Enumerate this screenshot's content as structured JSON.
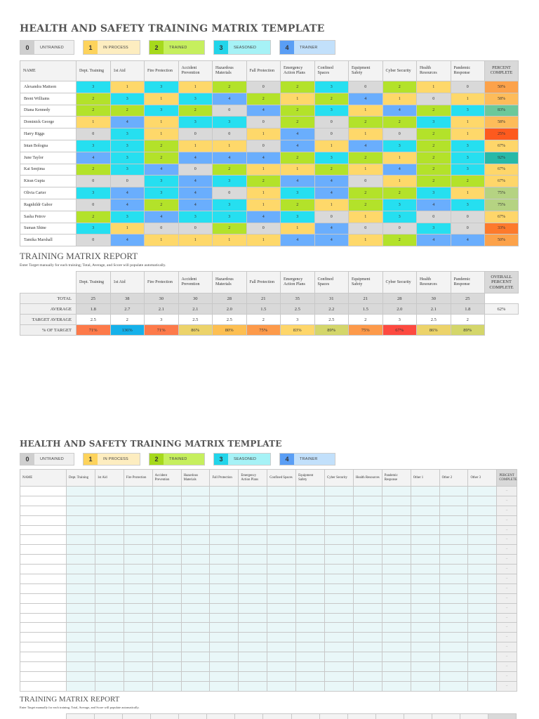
{
  "page1": {
    "title": "HEALTH AND SAFETY TRAINING MATRIX TEMPLATE",
    "legend": [
      {
        "value": "0",
        "label": "UNTRAINED",
        "color": "#cfcfcf"
      },
      {
        "value": "1",
        "label": "IN PROCESS",
        "color": "#fdd35c"
      },
      {
        "value": "2",
        "label": "TRAINED",
        "color": "#a6d91c"
      },
      {
        "value": "3",
        "label": "SEASONED",
        "color": "#22d5ea"
      },
      {
        "value": "4",
        "label": "TRAINER",
        "color": "#5a9ef5"
      }
    ],
    "matrix": {
      "headers": [
        "NAME",
        "Dept. Training",
        "1st Aid",
        "Fire Protection",
        "Accident Prevention",
        "Hazardous Materials",
        "Fall Protection",
        "Emergency Action Plans",
        "Confined Spaces",
        "Equipment Safety",
        "Cyber Security",
        "Health Resources",
        "Pandemic Response",
        "PERCENT COMPLETE"
      ],
      "rows": [
        {
          "name": "Alexandra Mattson",
          "scores": [
            3,
            1,
            3,
            1,
            2,
            0,
            2,
            3,
            0,
            2,
            1,
            0
          ],
          "percent": "50%",
          "pct_color": "#fca24a"
        },
        {
          "name": "Brent Williams",
          "scores": [
            2,
            3,
            1,
            3,
            4,
            2,
            1,
            2,
            4,
            1,
            0,
            1
          ],
          "percent": "58%",
          "pct_color": "#fdbc5a"
        },
        {
          "name": "Diana Kennedy",
          "scores": [
            2,
            2,
            3,
            2,
            0,
            4,
            2,
            3,
            1,
            4,
            2,
            3
          ],
          "percent": "83%",
          "pct_color": "#6cc89a"
        },
        {
          "name": "Dominick George",
          "scores": [
            1,
            4,
            1,
            3,
            3,
            0,
            2,
            0,
            2,
            2,
            3,
            1
          ],
          "percent": "58%",
          "pct_color": "#fdbc5a"
        },
        {
          "name": "Harry Riggs",
          "scores": [
            0,
            3,
            1,
            0,
            0,
            1,
            4,
            0,
            1,
            0,
            2,
            1
          ],
          "percent": "25%",
          "pct_color": "#fd5a1e"
        },
        {
          "name": "Intan Bologna",
          "scores": [
            3,
            3,
            2,
            1,
            1,
            0,
            4,
            1,
            4,
            3,
            2,
            3
          ],
          "percent": "67%",
          "pct_color": "#fed66a"
        },
        {
          "name": "June Taylor",
          "scores": [
            4,
            3,
            2,
            4,
            4,
            4,
            2,
            3,
            2,
            1,
            2,
            3
          ],
          "percent": "92%",
          "pct_color": "#27b9a8"
        },
        {
          "name": "Kai Senjima",
          "scores": [
            2,
            3,
            4,
            0,
            2,
            1,
            1,
            2,
            1,
            4,
            2,
            3
          ],
          "percent": "67%",
          "pct_color": "#fed66a"
        },
        {
          "name": "Kiran Gupta",
          "scores": [
            0,
            0,
            3,
            4,
            3,
            2,
            4,
            4,
            0,
            1,
            2,
            2
          ],
          "percent": "67%",
          "pct_color": "#fed66a"
        },
        {
          "name": "Olivia Carter",
          "scores": [
            3,
            4,
            3,
            4,
            0,
            1,
            3,
            4,
            2,
            2,
            3,
            1
          ],
          "percent": "75%",
          "pct_color": "#b5d382"
        },
        {
          "name": "Ragnhildr Gabor",
          "scores": [
            0,
            4,
            2,
            4,
            3,
            1,
            2,
            1,
            2,
            3,
            4,
            3
          ],
          "percent": "75%",
          "pct_color": "#b5d382"
        },
        {
          "name": "Sasha Petrov",
          "scores": [
            2,
            3,
            4,
            3,
            3,
            4,
            3,
            0,
            1,
            3,
            0,
            0
          ],
          "percent": "67%",
          "pct_color": "#fed66a"
        },
        {
          "name": "Suman Shine",
          "scores": [
            3,
            1,
            0,
            0,
            2,
            0,
            1,
            4,
            0,
            0,
            3,
            0
          ],
          "percent": "33%",
          "pct_color": "#fd7a2c"
        },
        {
          "name": "Tamika Marshall",
          "scores": [
            0,
            4,
            1,
            1,
            1,
            1,
            4,
            4,
            1,
            2,
            4,
            4
          ],
          "percent": "50%",
          "pct_color": "#fca24a"
        }
      ]
    },
    "report": {
      "title": "TRAINING MATRIX REPORT",
      "note": "Enter Target manually for each training; Total, Average, and Score will populate automatically.",
      "headers": [
        "Dept. Training",
        "1st Aid",
        "Fire Protection",
        "Accident Prevention",
        "Hazardous Materials",
        "Fall Protection",
        "Emergency Action Plans",
        "Confined Spaces",
        "Equipment Safety",
        "Cyber Security",
        "Health Resources",
        "Pandemic Response"
      ],
      "overall_label": "OVERALL PERCENT COMPLETE",
      "overall_value": "62%",
      "row_labels": {
        "total": "TOTAL",
        "average": "AVERAGE",
        "target": "TARGET AVERAGE",
        "pct": "% OF TARGET"
      },
      "total": [
        "25",
        "38",
        "30",
        "30",
        "28",
        "21",
        "35",
        "31",
        "21",
        "28",
        "30",
        "25"
      ],
      "average": [
        "1.8",
        "2.7",
        "2.1",
        "2.1",
        "2.0",
        "1.5",
        "2.5",
        "2.2",
        "1.5",
        "2.0",
        "2.1",
        "1.8"
      ],
      "target": [
        "2.5",
        "2",
        "3",
        "2.5",
        "2.5",
        "2",
        "3",
        "2.5",
        "2",
        "3",
        "2.5",
        "2"
      ],
      "pct_of_target": [
        "71%",
        "136%",
        "71%",
        "86%",
        "80%",
        "75%",
        "83%",
        "89%",
        "75%",
        "67%",
        "86%",
        "89%"
      ],
      "pct_colors": [
        "#fd7a4a",
        "#16b1ea",
        "#fd7a4a",
        "#ecd36a",
        "#fdbf52",
        "#fd9a4a",
        "#fed66a",
        "#d4d66a",
        "#fd9a4a",
        "#fd4a40",
        "#ecd36a",
        "#d4d66a"
      ]
    }
  },
  "page2": {
    "title": "HEALTH AND SAFETY TRAINING MATRIX TEMPLATE",
    "legend": [
      {
        "value": "0",
        "label": "UNTRAINED"
      },
      {
        "value": "1",
        "label": "IN PROCESS"
      },
      {
        "value": "2",
        "label": "TRAINED"
      },
      {
        "value": "3",
        "label": "SEASONED"
      },
      {
        "value": "4",
        "label": "TRAINER"
      }
    ],
    "matrix": {
      "headers": [
        "NAME",
        "Dept. Training",
        "1st Aid",
        "Fire Protection",
        "Accident Prevention",
        "Hazardous Materials",
        "Fall Protection",
        "Emergency Action Plans",
        "Confined Spaces",
        "Equipment Safety",
        "Cyber Security",
        "Health Resources",
        "Pandemic Response",
        "Other 1",
        "Other 2",
        "Other 3",
        "PERCENT COMPLETE"
      ],
      "empty_row_count": 21,
      "empty_percent": "–"
    },
    "report": {
      "title": "TRAINING MATRIX REPORT",
      "note": "Enter Target manually for each training; Total, Average, and Score will populate automatically."
    }
  }
}
